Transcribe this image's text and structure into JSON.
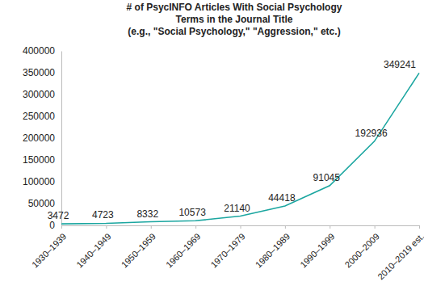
{
  "chart_data": {
    "type": "line",
    "title": [
      "# of PsycINFO Articles With Social Psychology",
      "Terms in the Journal Title",
      "(e.g., \"Social Psychology,\" \"Aggression,\" etc.)"
    ],
    "categories": [
      "1930–1939",
      "1940–1949",
      "1950–1959",
      "1960–1969",
      "1970–1979",
      "1980–1989",
      "1990–1999",
      "2000–2009",
      "2010–2019 est."
    ],
    "values": [
      3472,
      4723,
      8332,
      10573,
      21140,
      44418,
      91045,
      192936,
      349241
    ],
    "color": "#1ba6a0",
    "ylim": [
      0,
      400000
    ],
    "yticks": [
      0,
      50000,
      100000,
      150000,
      200000,
      250000,
      300000,
      350000,
      400000
    ],
    "grid": false,
    "data_labels": true
  }
}
